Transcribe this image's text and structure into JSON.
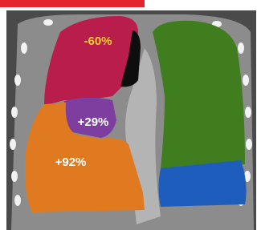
{
  "regions": [
    {
      "label": "-60%"
    },
    {
      "label": "+29%"
    },
    {
      "label": "+92%"
    }
  ]
}
